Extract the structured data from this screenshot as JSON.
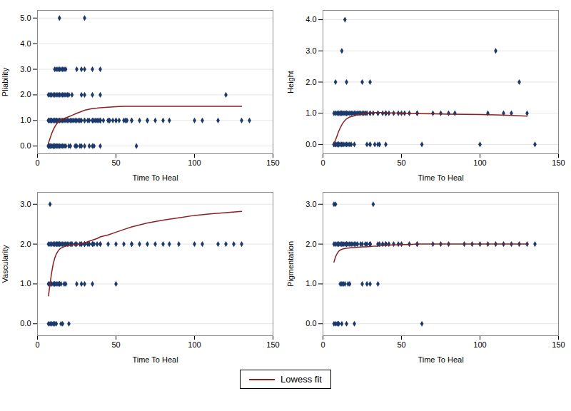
{
  "chart_data": [
    {
      "type": "scatter",
      "xlabel": "Time To Heal",
      "ylabel": "Pliability",
      "xlim": [
        0,
        150
      ],
      "xticks": [
        0,
        50,
        100,
        150
      ],
      "ylim": [
        -0.3,
        5.3
      ],
      "yticks": [
        0,
        1,
        2,
        3,
        4,
        5
      ],
      "grid": "y",
      "legend": "bottom",
      "series": [
        {
          "type": "scatter",
          "color": "#1b3a6b",
          "marker": "diamond",
          "x": [
            7,
            7,
            7,
            7,
            7,
            7,
            7,
            8,
            8,
            8,
            8,
            8,
            8,
            9,
            9,
            9,
            9,
            9,
            10,
            10,
            10,
            10,
            10,
            10,
            10,
            10,
            11,
            11,
            11,
            11,
            11,
            11,
            12,
            12,
            12,
            12,
            12,
            12,
            12,
            12,
            13,
            13,
            13,
            13,
            13,
            14,
            14,
            14,
            14,
            14,
            14,
            15,
            15,
            15,
            15,
            15,
            15,
            16,
            16,
            16,
            16,
            17,
            17,
            17,
            17,
            18,
            18,
            18,
            18,
            19,
            19,
            20,
            20,
            20,
            21,
            21,
            22,
            22,
            23,
            24,
            24,
            25,
            25,
            25,
            26,
            27,
            27,
            28,
            28,
            28,
            28,
            30,
            30,
            30,
            30,
            30,
            30,
            32,
            33,
            33,
            35,
            35,
            35,
            35,
            35,
            36,
            36,
            37,
            38,
            39,
            40,
            40,
            40,
            40,
            40,
            40,
            40,
            42,
            45,
            45,
            46,
            48,
            50,
            50,
            52,
            55,
            56,
            57,
            60,
            60,
            63,
            65,
            70,
            70,
            75,
            80,
            84,
            100,
            105,
            115,
            120,
            130,
            135
          ],
          "values": [
            0,
            0,
            0,
            0,
            1,
            1,
            2,
            0,
            0,
            0,
            1,
            1,
            2,
            0,
            1,
            1,
            1,
            2,
            0,
            0,
            0,
            0,
            0,
            1,
            1,
            2,
            0,
            0,
            1,
            1,
            2,
            3,
            0,
            0,
            1,
            1,
            1,
            1,
            2,
            3,
            0,
            0,
            1,
            2,
            3,
            0,
            1,
            1,
            2,
            3,
            5,
            0,
            0,
            1,
            1,
            2,
            3,
            0,
            1,
            2,
            3,
            0,
            1,
            2,
            3,
            0,
            1,
            2,
            3,
            1,
            2,
            0,
            1,
            2,
            0,
            1,
            1,
            2,
            1,
            0,
            1,
            0,
            1,
            3,
            1,
            0,
            1,
            0,
            1,
            2,
            3,
            0,
            1,
            2,
            3,
            1,
            5,
            1,
            0,
            1,
            1,
            0,
            1,
            2,
            3,
            0,
            1,
            1,
            1,
            1,
            1,
            1,
            0,
            2,
            1,
            1,
            3,
            1,
            1,
            1,
            1,
            1,
            1,
            1,
            1,
            1,
            1,
            1,
            1,
            1,
            0,
            1,
            1,
            1,
            1,
            1,
            1,
            1,
            1,
            1,
            2,
            1,
            1
          ]
        },
        {
          "name": "Lowess fit",
          "type": "line",
          "color": "#8b2020",
          "line_style": "solid",
          "x": [
            7,
            8,
            9,
            10,
            11,
            12,
            13,
            14,
            15,
            17,
            20,
            22,
            25,
            28,
            30,
            33,
            35,
            38,
            40,
            45,
            50,
            55,
            60,
            70,
            80,
            90,
            100,
            110,
            120,
            130
          ],
          "values": [
            0.12,
            0.3,
            0.48,
            0.63,
            0.75,
            0.85,
            0.92,
            0.98,
            1.03,
            1.08,
            1.15,
            1.2,
            1.28,
            1.35,
            1.4,
            1.44,
            1.46,
            1.48,
            1.5,
            1.52,
            1.54,
            1.55,
            1.55,
            1.55,
            1.55,
            1.55,
            1.55,
            1.55,
            1.55,
            1.55
          ]
        }
      ]
    },
    {
      "type": "scatter",
      "xlabel": "Time To Heal",
      "ylabel": "Height",
      "xlim": [
        0,
        150
      ],
      "xticks": [
        0,
        50,
        100,
        150
      ],
      "ylim": [
        -0.3,
        4.3
      ],
      "yticks": [
        0,
        1,
        2,
        3,
        4
      ],
      "grid": "y",
      "legend": "bottom",
      "series": [
        {
          "type": "scatter",
          "color": "#1b3a6b",
          "marker": "diamond",
          "x": [
            7,
            7,
            7,
            8,
            8,
            8,
            8,
            9,
            9,
            9,
            10,
            10,
            10,
            10,
            10,
            10,
            11,
            11,
            11,
            11,
            12,
            12,
            12,
            12,
            12,
            13,
            13,
            14,
            14,
            14,
            14,
            15,
            15,
            15,
            15,
            15,
            16,
            16,
            17,
            17,
            18,
            18,
            19,
            20,
            20,
            21,
            22,
            23,
            24,
            25,
            25,
            26,
            27,
            28,
            28,
            30,
            30,
            30,
            30,
            30,
            32,
            33,
            35,
            35,
            35,
            36,
            38,
            40,
            40,
            40,
            40,
            42,
            45,
            48,
            50,
            52,
            55,
            60,
            60,
            63,
            70,
            75,
            80,
            84,
            100,
            105,
            110,
            115,
            120,
            125,
            130,
            135
          ],
          "values": [
            0,
            0,
            1,
            0,
            0,
            1,
            2,
            0,
            0,
            1,
            0,
            0,
            0,
            0,
            1,
            1,
            0,
            1,
            1,
            1,
            0,
            0,
            1,
            1,
            3,
            0,
            1,
            0,
            1,
            1,
            4,
            0,
            1,
            1,
            1,
            2,
            0,
            1,
            0,
            1,
            0,
            1,
            1,
            0,
            1,
            1,
            1,
            1,
            1,
            1,
            2,
            1,
            1,
            0,
            1,
            0,
            0,
            1,
            1,
            2,
            1,
            0,
            0,
            1,
            1,
            0,
            1,
            0,
            1,
            1,
            1,
            1,
            1,
            1,
            1,
            1,
            1,
            1,
            1,
            0,
            1,
            1,
            1,
            1,
            0,
            1,
            3,
            1,
            1,
            2,
            1,
            0
          ]
        },
        {
          "name": "Lowess fit",
          "type": "line",
          "color": "#8b2020",
          "line_style": "solid",
          "x": [
            7,
            8,
            9,
            10,
            11,
            12,
            13,
            14,
            15,
            17,
            20,
            22,
            25,
            28,
            30,
            33,
            35,
            38,
            40,
            45,
            50,
            60,
            70,
            80,
            100,
            110,
            120,
            130
          ],
          "values": [
            0.04,
            0.14,
            0.28,
            0.42,
            0.53,
            0.63,
            0.71,
            0.77,
            0.82,
            0.88,
            0.92,
            0.95,
            0.98,
            1.0,
            1.01,
            1.02,
            1.02,
            1.02,
            1.01,
            1.01,
            1.0,
            0.99,
            0.98,
            0.97,
            0.96,
            0.95,
            0.93,
            0.91
          ]
        }
      ]
    },
    {
      "type": "scatter",
      "xlabel": "Time To Heal",
      "ylabel": "Vascularity",
      "xlim": [
        0,
        150
      ],
      "xticks": [
        0,
        50,
        100,
        150
      ],
      "ylim": [
        -0.3,
        3.3
      ],
      "yticks": [
        0,
        1,
        2,
        3
      ],
      "grid": "y",
      "legend": "bottom",
      "series": [
        {
          "type": "scatter",
          "color": "#1b3a6b",
          "marker": "diamond",
          "x": [
            7,
            7,
            7,
            8,
            8,
            8,
            8,
            9,
            9,
            9,
            10,
            10,
            10,
            10,
            10,
            11,
            11,
            11,
            11,
            12,
            12,
            12,
            12,
            12,
            13,
            13,
            13,
            14,
            14,
            14,
            14,
            15,
            15,
            15,
            15,
            16,
            16,
            17,
            17,
            18,
            18,
            18,
            19,
            20,
            20,
            21,
            22,
            22,
            24,
            25,
            25,
            27,
            28,
            28,
            28,
            30,
            30,
            30,
            30,
            30,
            30,
            32,
            33,
            35,
            35,
            35,
            36,
            38,
            40,
            40,
            45,
            50,
            50,
            55,
            60,
            60,
            65,
            70,
            75,
            80,
            84,
            90,
            100,
            105,
            115,
            120,
            125,
            130
          ],
          "values": [
            0,
            1,
            2,
            0,
            1,
            2,
            3,
            0,
            1,
            2,
            0,
            0,
            1,
            2,
            2,
            0,
            1,
            1,
            2,
            0,
            1,
            2,
            2,
            2,
            1,
            2,
            2,
            1,
            1,
            2,
            2,
            0,
            1,
            2,
            2,
            0,
            2,
            1,
            2,
            1,
            2,
            2,
            2,
            0,
            2,
            2,
            2,
            2,
            2,
            1,
            2,
            2,
            1,
            2,
            2,
            1,
            2,
            2,
            2,
            2,
            2,
            2,
            2,
            1,
            2,
            2,
            2,
            2,
            2,
            2,
            2,
            1,
            2,
            2,
            2,
            2,
            2,
            2,
            2,
            2,
            2,
            2,
            2,
            2,
            2,
            2,
            2,
            2
          ]
        },
        {
          "name": "Lowess fit",
          "type": "line",
          "color": "#8b2020",
          "line_style": "solid",
          "x": [
            7,
            8,
            9,
            10,
            11,
            12,
            13,
            14,
            15,
            16,
            18,
            20,
            22,
            25,
            27,
            28,
            30,
            32,
            35,
            38,
            40,
            45,
            50,
            56,
            60,
            65,
            70,
            80,
            90,
            100,
            110,
            120,
            130
          ],
          "values": [
            0.7,
            1.0,
            1.28,
            1.5,
            1.65,
            1.75,
            1.82,
            1.87,
            1.9,
            1.92,
            1.95,
            1.97,
            1.98,
            1.99,
            2.0,
            2.01,
            2.03,
            2.06,
            2.1,
            2.14,
            2.18,
            2.23,
            2.3,
            2.38,
            2.43,
            2.48,
            2.53,
            2.6,
            2.66,
            2.72,
            2.76,
            2.79,
            2.82
          ]
        }
      ]
    },
    {
      "type": "scatter",
      "xlabel": "Time To Heal",
      "ylabel": "Pigmentation",
      "xlim": [
        0,
        150
      ],
      "xticks": [
        0,
        50,
        100,
        150
      ],
      "ylim": [
        -0.3,
        3.3
      ],
      "yticks": [
        0,
        1,
        2,
        3
      ],
      "grid": "y",
      "legend": "bottom",
      "series": [
        {
          "type": "scatter",
          "color": "#1b3a6b",
          "marker": "diamond",
          "x": [
            7,
            7,
            7,
            8,
            8,
            8,
            9,
            9,
            10,
            10,
            10,
            10,
            11,
            11,
            12,
            12,
            12,
            12,
            13,
            13,
            14,
            14,
            15,
            15,
            15,
            16,
            16,
            17,
            17,
            18,
            19,
            20,
            20,
            21,
            22,
            24,
            25,
            25,
            27,
            28,
            28,
            30,
            30,
            30,
            30,
            30,
            30,
            32,
            35,
            35,
            36,
            38,
            40,
            40,
            40,
            42,
            45,
            48,
            50,
            55,
            60,
            60,
            63,
            70,
            75,
            80,
            90,
            95,
            100,
            105,
            110,
            115,
            120,
            125,
            130,
            135
          ],
          "values": [
            0,
            2,
            3,
            0,
            2,
            3,
            0,
            2,
            0,
            0,
            2,
            2,
            1,
            2,
            0,
            1,
            2,
            2,
            1,
            2,
            1,
            2,
            0,
            2,
            2,
            1,
            2,
            1,
            2,
            2,
            2,
            0,
            2,
            2,
            2,
            2,
            1,
            2,
            2,
            1,
            2,
            1,
            2,
            2,
            2,
            2,
            2,
            3,
            1,
            2,
            2,
            2,
            2,
            2,
            2,
            2,
            2,
            2,
            2,
            2,
            2,
            2,
            0,
            2,
            2,
            2,
            2,
            2,
            2,
            2,
            2,
            2,
            2,
            2,
            2,
            2
          ]
        },
        {
          "name": "Lowess fit",
          "type": "line",
          "color": "#8b2020",
          "line_style": "solid",
          "x": [
            7,
            8,
            9,
            10,
            11,
            12,
            13,
            14,
            15,
            16,
            18,
            20,
            22,
            25,
            27,
            30,
            33,
            35,
            40,
            45,
            50,
            55,
            60,
            70,
            80,
            100,
            110,
            120,
            130
          ],
          "values": [
            1.55,
            1.68,
            1.76,
            1.82,
            1.85,
            1.87,
            1.88,
            1.89,
            1.9,
            1.9,
            1.91,
            1.91,
            1.92,
            1.93,
            1.93,
            1.94,
            1.95,
            1.95,
            1.97,
            1.98,
            1.99,
            1.99,
            2.0,
            2.0,
            2.0,
            2.0,
            2.0,
            2.0,
            2.0
          ]
        }
      ]
    }
  ]
}
